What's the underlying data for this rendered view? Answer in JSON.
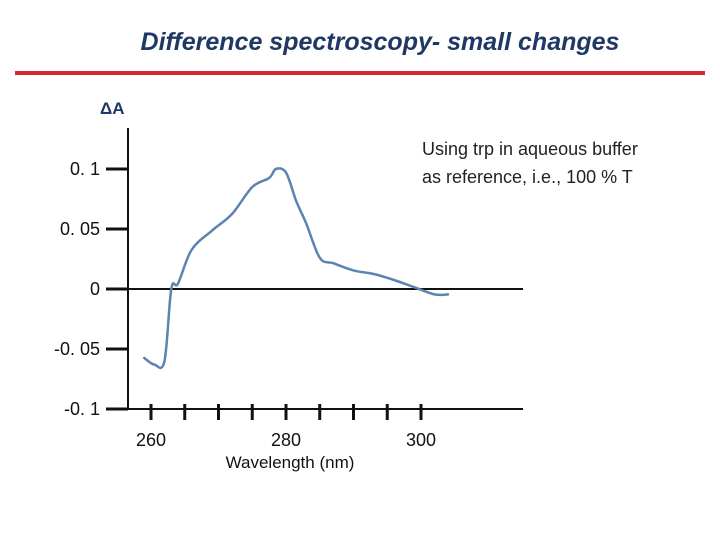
{
  "slide": {
    "title": "Difference spectroscopy- small changes",
    "note_line1": "Using trp in aqueous buffer",
    "note_line2": "as reference, i.e., 100 % T"
  },
  "colors": {
    "title": "#1f3864",
    "rule": "#d9262e",
    "curve": "#5b84b1",
    "axis": "#111111"
  },
  "chart_data": {
    "type": "line",
    "xlabel": "Wavelength (nm)",
    "ylabel": "ΔA",
    "xlim": [
      255,
      305
    ],
    "ylim": [
      -0.1,
      0.1
    ],
    "x_ticks": [
      260,
      265,
      270,
      275,
      280,
      285,
      290,
      295,
      300
    ],
    "x_tick_labels": [
      {
        "value": 260,
        "label": "260"
      },
      {
        "value": 280,
        "label": "280"
      },
      {
        "value": 300,
        "label": "300"
      }
    ],
    "y_ticks": [
      {
        "value": 0.1,
        "label": "0. 1"
      },
      {
        "value": 0.05,
        "label": "0. 05"
      },
      {
        "value": 0,
        "label": "0"
      },
      {
        "value": -0.05,
        "label": "-0. 05"
      },
      {
        "value": -0.1,
        "label": "-0. 1"
      }
    ],
    "zero_line": true,
    "series": [
      {
        "x": [
          259.0,
          260.5,
          262.0,
          263.0,
          264.0,
          266.0,
          269.0,
          272.0,
          275.0,
          277.5,
          278.5,
          280.0,
          281.5,
          283.0,
          285.0,
          287.0,
          290.0,
          293.0,
          296.0,
          299.0,
          302.0,
          304.0
        ],
        "y": [
          -0.0575,
          -0.063,
          -0.06,
          0.0,
          0.0045,
          0.0325,
          0.0485,
          0.0625,
          0.085,
          0.0925,
          0.1,
          0.097,
          0.0735,
          0.0545,
          0.026,
          0.0215,
          0.0155,
          0.0125,
          0.0075,
          0.0015,
          -0.0045,
          -0.0045
        ]
      }
    ]
  }
}
